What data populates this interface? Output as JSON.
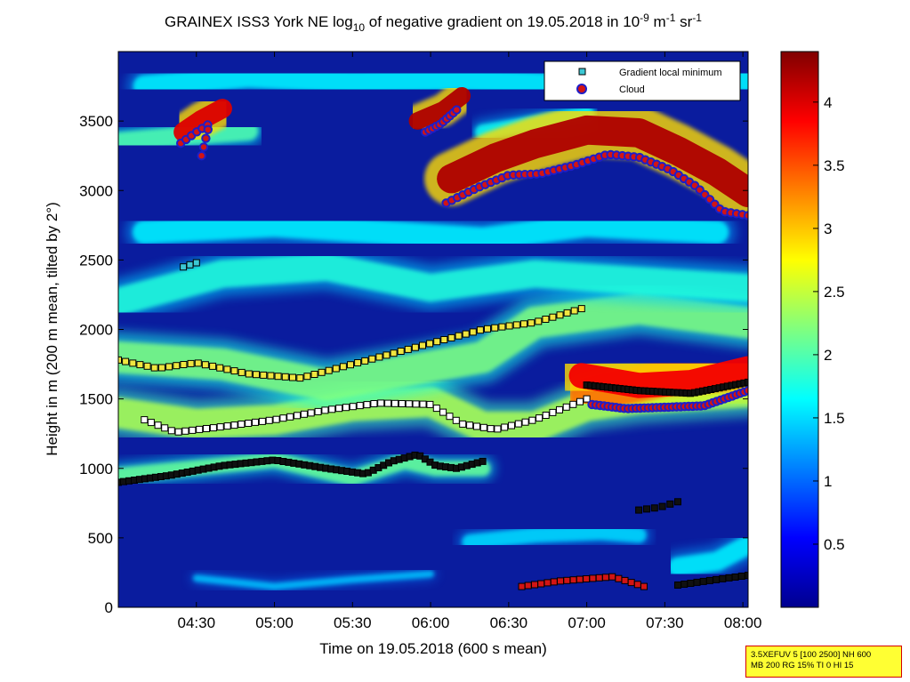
{
  "title": {
    "part1": "GRAINEX ISS3 York NE log",
    "sub": "10",
    "part2": " of negative gradient on 19.05.2018 in 10",
    "exp1": "-9",
    "part3": " m",
    "exp2": "-1",
    "part4": " sr",
    "exp3": "-1"
  },
  "info_box": {
    "line1": "3.5XEFUV 5 [100 2500] NH 600",
    "line2": "MB 200 RG 15% TI 0 HI 15"
  },
  "colors": {
    "background_field": "#0a1c9e",
    "gradient_marker": "#3cc8d4",
    "cloud_marker": "#d21414",
    "cloud_ring": "#1e1ec8"
  },
  "chart_data": {
    "type": "heatmap",
    "xlabel": "Time on 19.05.2018 (600 s mean)",
    "ylabel": "Height in m (200 m mean, tilted by 2°)",
    "x_ticks": [
      "04:30",
      "05:00",
      "05:30",
      "06:00",
      "06:30",
      "07:00",
      "07:30",
      "08:00"
    ],
    "x_tick_minutes": [
      270,
      300,
      330,
      360,
      390,
      420,
      450,
      480
    ],
    "xlim_minutes": [
      240,
      482
    ],
    "y_ticks": [
      0,
      500,
      1000,
      1500,
      2000,
      2500,
      3000,
      3500
    ],
    "ylim": [
      0,
      4000
    ],
    "colorbar": {
      "ticks": [
        "0.5",
        "1",
        "1.5",
        "2",
        "2.5",
        "3",
        "3.5",
        "4"
      ],
      "tick_values": [
        0.5,
        1,
        1.5,
        2,
        2.5,
        3,
        3.5,
        4
      ],
      "range": [
        0,
        4.4
      ],
      "colormap": "jet"
    },
    "legend": {
      "position": "top-right",
      "entries": [
        {
          "label": "Gradient local minimum",
          "marker": "square",
          "color": "#3cc8d4"
        },
        {
          "label": "Cloud",
          "marker": "circle",
          "color": "#d21414"
        }
      ]
    },
    "layers": [
      {
        "points": [
          [
            240,
            950
          ],
          [
            300,
            1060
          ],
          [
            330,
            930
          ],
          [
            350,
            1050
          ],
          [
            362,
            1000
          ],
          [
            380,
            1000
          ]
        ],
        "thick": 110,
        "value": 2.1
      },
      {
        "points": [
          [
            240,
            1400
          ],
          [
            270,
            1320
          ],
          [
            300,
            1350
          ],
          [
            330,
            1450
          ],
          [
            360,
            1480
          ],
          [
            380,
            1300
          ],
          [
            400,
            1300
          ],
          [
            420,
            1450
          ],
          [
            440,
            1500
          ],
          [
            482,
            1550
          ]
        ],
        "thick": 220,
        "value": 2.4
      },
      {
        "points": [
          [
            240,
            1800
          ],
          [
            280,
            1750
          ],
          [
            320,
            1600
          ],
          [
            350,
            1700
          ],
          [
            380,
            1800
          ],
          [
            400,
            2050
          ],
          [
            440,
            2150
          ],
          [
            482,
            2050
          ]
        ],
        "thick": 230,
        "value": 2.2
      },
      {
        "points": [
          [
            240,
            2200
          ],
          [
            280,
            2400
          ],
          [
            320,
            2450
          ],
          [
            360,
            2300
          ],
          [
            400,
            2400
          ],
          [
            440,
            2350
          ],
          [
            482,
            2300
          ]
        ],
        "thick": 200,
        "value": 1.8
      },
      {
        "points": [
          [
            250,
            2700
          ],
          [
            300,
            2750
          ],
          [
            340,
            2700
          ],
          [
            380,
            2650
          ],
          [
            420,
            2750
          ],
          [
            470,
            2700
          ]
        ],
        "thick": 170,
        "value": 1.6
      },
      {
        "points": [
          [
            420,
            1520
          ],
          [
            450,
            1650
          ],
          [
            482,
            1700
          ]
        ],
        "thick": 260,
        "value": 3.4
      },
      {
        "points": [
          [
            240,
            3350
          ],
          [
            270,
            3400
          ],
          [
            290,
            3430
          ]
        ],
        "thick": 140,
        "value": 2.0
      },
      {
        "points": [
          [
            380,
            3420
          ],
          [
            420,
            3550
          ]
        ],
        "thick": 110,
        "value": 1.7
      },
      {
        "points": [
          [
            250,
            3750
          ],
          [
            290,
            3820
          ],
          [
            330,
            3780
          ],
          [
            370,
            3800
          ],
          [
            410,
            3760
          ],
          [
            450,
            3820
          ],
          [
            482,
            3790
          ]
        ],
        "thick": 160,
        "value": 1.6
      },
      {
        "points": [
          [
            375,
            470
          ],
          [
            400,
            520
          ],
          [
            425,
            540
          ],
          [
            440,
            520
          ]
        ],
        "thick": 110,
        "value": 1.5
      },
      {
        "points": [
          [
            455,
            290
          ],
          [
            470,
            330
          ],
          [
            482,
            450
          ]
        ],
        "thick": 140,
        "value": 1.6
      },
      {
        "points": [
          [
            270,
            210
          ],
          [
            300,
            150
          ],
          [
            330,
            200
          ],
          [
            360,
            240
          ]
        ],
        "thick": 50,
        "value": 1.4
      }
    ],
    "cloud_layers": [
      {
        "points": [
          [
            368,
            2950
          ],
          [
            385,
            3100
          ],
          [
            400,
            3200
          ],
          [
            420,
            3300
          ],
          [
            440,
            3280
          ],
          [
            455,
            3150
          ],
          [
            470,
            3000
          ],
          [
            482,
            2850
          ]
        ],
        "top": 300,
        "value": 4.2
      },
      {
        "points": [
          [
            355,
            3420
          ],
          [
            365,
            3500
          ],
          [
            372,
            3600
          ]
        ],
        "top": 180,
        "value": 4.2
      },
      {
        "points": [
          [
            265,
            3330
          ],
          [
            272,
            3420
          ],
          [
            280,
            3500
          ]
        ],
        "top": 200,
        "value": 4.0
      },
      {
        "points": [
          [
            418,
            1550
          ],
          [
            440,
            1480
          ],
          [
            460,
            1500
          ],
          [
            482,
            1600
          ]
        ],
        "top": 260,
        "value": 3.9
      }
    ],
    "gradient_minimum_lines": [
      {
        "points": [
          [
            240,
            900
          ],
          [
            260,
            950
          ],
          [
            280,
            1020
          ],
          [
            300,
            1060
          ],
          [
            320,
            1000
          ],
          [
            335,
            960
          ],
          [
            345,
            1050
          ],
          [
            355,
            1100
          ],
          [
            362,
            1020
          ],
          [
            370,
            1000
          ],
          [
            380,
            1050
          ]
        ],
        "n": 70
      },
      {
        "points": [
          [
            250,
            1350
          ],
          [
            262,
            1260
          ],
          [
            280,
            1300
          ],
          [
            300,
            1350
          ],
          [
            320,
            1420
          ],
          [
            340,
            1470
          ],
          [
            360,
            1460
          ],
          [
            372,
            1320
          ],
          [
            385,
            1280
          ],
          [
            400,
            1350
          ],
          [
            420,
            1500
          ]
        ],
        "n": 65
      },
      {
        "points": [
          [
            240,
            1780
          ],
          [
            255,
            1720
          ],
          [
            270,
            1760
          ],
          [
            290,
            1680
          ],
          [
            310,
            1650
          ],
          [
            320,
            1700
          ],
          [
            340,
            1800
          ],
          [
            360,
            1900
          ],
          [
            380,
            2000
          ],
          [
            400,
            2050
          ],
          [
            418,
            2150
          ]
        ],
        "n": 65
      },
      {
        "points": [
          [
            420,
            1600
          ],
          [
            440,
            1560
          ],
          [
            460,
            1540
          ],
          [
            482,
            1620
          ]
        ],
        "n": 40
      },
      {
        "points": [
          [
            395,
            150
          ],
          [
            410,
            190
          ],
          [
            430,
            220
          ],
          [
            442,
            150
          ]
        ],
        "n": 20
      },
      {
        "points": [
          [
            455,
            160
          ],
          [
            470,
            200
          ],
          [
            482,
            230
          ]
        ],
        "n": 12
      },
      {
        "points": [
          [
            265,
            2450
          ],
          [
            270,
            2480
          ]
        ],
        "n": 3
      },
      {
        "points": [
          [
            440,
            700
          ],
          [
            448,
            720
          ],
          [
            455,
            760
          ]
        ],
        "n": 6
      }
    ],
    "clouds": [
      {
        "points": [
          [
            366,
            2910
          ],
          [
            378,
            3020
          ],
          [
            390,
            3110
          ],
          [
            402,
            3120
          ],
          [
            415,
            3180
          ],
          [
            428,
            3260
          ],
          [
            440,
            3240
          ],
          [
            452,
            3150
          ],
          [
            462,
            3030
          ],
          [
            472,
            2850
          ],
          [
            482,
            2820
          ]
        ],
        "n": 55
      },
      {
        "points": [
          [
            358,
            3420
          ],
          [
            364,
            3480
          ],
          [
            370,
            3580
          ]
        ],
        "n": 10
      },
      {
        "points": [
          [
            264,
            3340
          ],
          [
            270,
            3420
          ],
          [
            275,
            3480
          ],
          [
            272,
            3250
          ]
        ],
        "n": 10
      },
      {
        "points": [
          [
            422,
            1460
          ],
          [
            435,
            1430
          ],
          [
            450,
            1440
          ],
          [
            465,
            1450
          ],
          [
            482,
            1560
          ]
        ],
        "n": 40
      }
    ]
  }
}
